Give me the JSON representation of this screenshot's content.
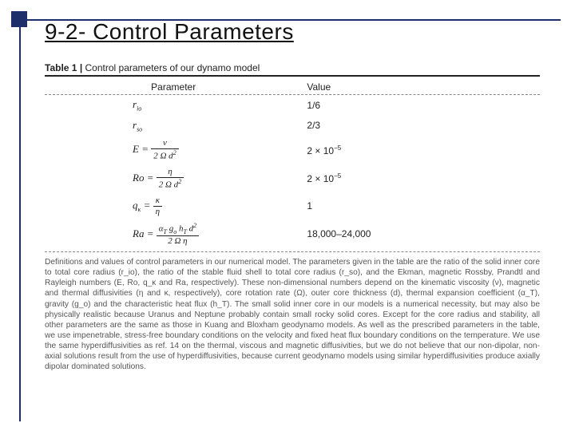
{
  "slide": {
    "title": "9-2- Control Parameters"
  },
  "table": {
    "caption_label": "Table 1",
    "caption_text": "Control parameters of our dynamo model",
    "headers": {
      "param": "Parameter",
      "value": "Value"
    },
    "rows": [
      {
        "param_html": "r<sub>io</sub>",
        "value_html": "1/6"
      },
      {
        "param_html": "r<sub>so</sub>",
        "value_html": "2/3"
      },
      {
        "param_html": "E = <span class='frac'><span class='num'>ν</span><span class='den'>2 Ω d<sup>2</sup></span></span>",
        "value_html": "2 × 10<sup>−5</sup>"
      },
      {
        "param_html": "Ro = <span class='frac'><span class='num'>η</span><span class='den'>2 Ω d<sup>2</sup></span></span>",
        "value_html": "2 × 10<sup>−5</sup>"
      },
      {
        "param_html": "q<sub>κ</sub> = <span class='frac'><span class='num'>κ</span><span class='den'>η</span></span>",
        "value_html": "1"
      },
      {
        "param_html": "Ra = <span class='frac'><span class='num'>α<sub>T</sub> g<sub>o</sub> h<sub>T</sub> d<sup>2</sup></span><span class='den'>2 Ω η</span></span>",
        "value_html": "18,000–24,000"
      }
    ]
  },
  "caption": {
    "text": "Definitions and values of control parameters in our numerical model. The parameters given in the table are the ratio of the solid inner core to total core radius (r_io), the ratio of the stable fluid shell to total core radius (r_so), and the Ekman, magnetic Rossby, Prandtl and Rayleigh numbers (E, Ro, q_κ and Ra, respectively). These non-dimensional numbers depend on the kinematic viscosity (ν), magnetic and thermal diffusivities (η and κ, respectively), core rotation rate (Ω), outer core thickness (d), thermal expansion coefficient (α_T), gravity (g_o) and the characteristic heat flux (h_T). The small solid inner core in our models is a numerical necessity, but may also be physically realistic because Uranus and Neptune probably contain small rocky solid cores. Except for the core radius and stability, all other parameters are the same as those in Kuang and Bloxham geodynamo models. As well as the prescribed parameters in the table, we use impenetrable, stress-free boundary conditions on the velocity and fixed heat flux boundary conditions on the temperature. We use the same hyperdiffusivities as ref. 14 on the thermal, viscous and magnetic diffusivities, but we do not believe that our non-dipolar, non-axial solutions result from the use of hyperdiffusivities, because current geodynamo models using similar hyperdiffusivities produce axially dipolar dominated solutions."
  },
  "style": {
    "accent_color": "#1d2e6b",
    "bg": "#ffffff"
  }
}
